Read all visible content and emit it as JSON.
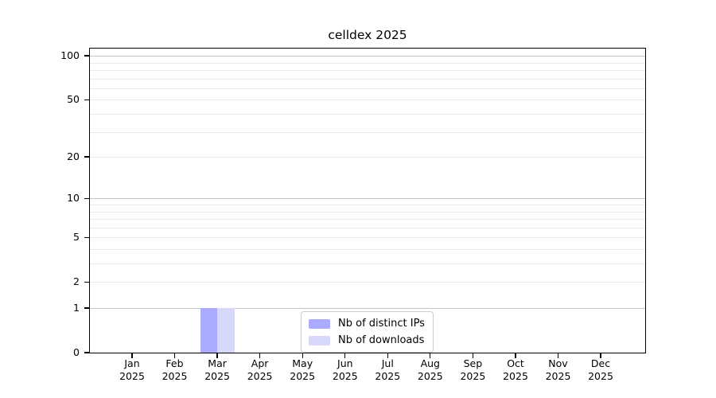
{
  "figure": {
    "title": "celldex 2025"
  },
  "chart_data": {
    "type": "bar",
    "title": "celldex 2025",
    "categories": [
      "Jan 2025",
      "Feb 2025",
      "Mar 2025",
      "Apr 2025",
      "May 2025",
      "Jun 2025",
      "Jul 2025",
      "Aug 2025",
      "Sep 2025",
      "Oct 2025",
      "Nov 2025",
      "Dec 2025"
    ],
    "series": [
      {
        "name": "Nb of distinct IPs",
        "color": "#aaaaff",
        "values": [
          0,
          0,
          1,
          0,
          0,
          0,
          0,
          0,
          0,
          0,
          0,
          0
        ]
      },
      {
        "name": "Nb of downloads",
        "color": "#d8d8fa",
        "values": [
          0,
          0,
          1,
          0,
          0,
          0,
          0,
          0,
          0,
          0,
          0,
          0
        ]
      }
    ],
    "xlabel": "",
    "ylabel": "",
    "yscale": "log(value+1)",
    "ylim": [
      0,
      112
    ],
    "yticks": [
      0,
      1,
      2,
      5,
      10,
      20,
      50,
      100
    ],
    "major_gridlines": [
      1,
      10,
      100
    ],
    "minor_gridlines": [
      2,
      3,
      4,
      5,
      6,
      7,
      8,
      9,
      20,
      30,
      40,
      50,
      60,
      70,
      80,
      90
    ],
    "grid": true,
    "legend_position": "lower center"
  },
  "legend": {
    "items": [
      {
        "label": "Nb of distinct IPs",
        "color": "#aaaaff"
      },
      {
        "label": "Nb of downloads",
        "color": "#d8d8fa"
      }
    ]
  },
  "colors": {
    "major_grid": "#c4c4c4",
    "minor_grid": "#e9e9e9",
    "spine": "#000000",
    "background": "#ffffff"
  }
}
